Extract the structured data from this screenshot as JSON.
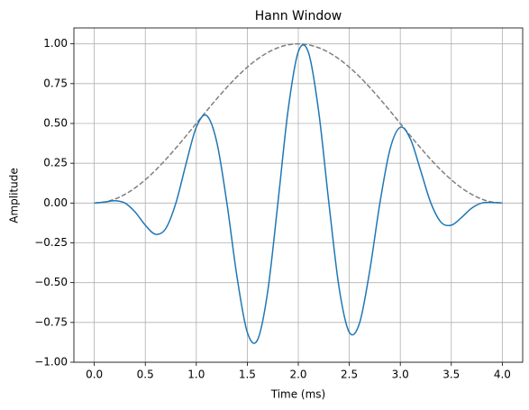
{
  "chart_data": {
    "type": "line",
    "title": "Hann Window",
    "xlabel": "Time (ms)",
    "ylabel": "Amplitude",
    "x": [
      0,
      0.1,
      0.2,
      0.3,
      0.4,
      0.5,
      0.6,
      0.7,
      0.8,
      0.9,
      1,
      1.1,
      1.2,
      1.3,
      1.4,
      1.5,
      1.6,
      1.7,
      1.8,
      1.9,
      2,
      2.1,
      2.2,
      2.3,
      2.4,
      2.5,
      2.6,
      2.7,
      2.8,
      2.9,
      3,
      3.1,
      3.2,
      3.3,
      3.4,
      3.5,
      3.6,
      3.7,
      3.8,
      3.9,
      4
    ],
    "series": [
      {
        "color": "#7f7f7f",
        "dashed": true,
        "values": [
          0,
          0.0062,
          0.0245,
          0.0545,
          0.0955,
          0.1464,
          0.2061,
          0.273,
          0.3455,
          0.4218,
          0.5,
          0.5782,
          0.6545,
          0.727,
          0.7939,
          0.8536,
          0.9045,
          0.9455,
          0.9755,
          0.9938,
          1,
          0.9938,
          0.9755,
          0.9455,
          0.9045,
          0.8536,
          0.7939,
          0.727,
          0.6545,
          0.5782,
          0.5,
          0.4218,
          0.3455,
          0.273,
          0.2061,
          0.1464,
          0.0955,
          0.0545,
          0.0245,
          0.0062,
          0
        ]
      },
      {
        "color": "#1f77b4",
        "dashed": false,
        "values": [
          0,
          0.0059,
          0.0144,
          0,
          -0.0562,
          -0.139,
          -0.196,
          -0.161,
          0,
          0.248,
          0.476,
          0.55,
          0.385,
          0,
          -0.467,
          -0.812,
          -0.86,
          -0.556,
          0,
          0.584,
          0.951,
          0.945,
          0.574,
          0,
          -0.532,
          -0.812,
          -0.755,
          -0.427,
          0,
          0.34,
          0.476,
          0.401,
          0.203,
          0,
          -0.121,
          -0.139,
          -0.091,
          -0.032,
          0,
          0.0036,
          0
        ]
      }
    ],
    "xlim": [
      -0.2,
      4.2
    ],
    "ylim": [
      -1,
      1.1
    ],
    "xticks": [
      {
        "value": 0,
        "label": "0.0"
      },
      {
        "value": 0.5,
        "label": "0.5"
      },
      {
        "value": 1,
        "label": "1.0"
      },
      {
        "value": 1.5,
        "label": "1.5"
      },
      {
        "value": 2,
        "label": "2.0"
      },
      {
        "value": 2.5,
        "label": "2.5"
      },
      {
        "value": 3,
        "label": "3.0"
      },
      {
        "value": 3.5,
        "label": "3.5"
      },
      {
        "value": 4,
        "label": "4.0"
      }
    ],
    "yticks": [
      {
        "value": -1,
        "label": "−1.00"
      },
      {
        "value": -0.75,
        "label": "−0.75"
      },
      {
        "value": -0.5,
        "label": "−0.50"
      },
      {
        "value": -0.25,
        "label": "−0.25"
      },
      {
        "value": 0,
        "label": "0.00"
      },
      {
        "value": 0.25,
        "label": "0.25"
      },
      {
        "value": 0.5,
        "label": "0.50"
      },
      {
        "value": 0.75,
        "label": "0.75"
      },
      {
        "value": 1,
        "label": "1.00"
      }
    ],
    "grid": true
  }
}
